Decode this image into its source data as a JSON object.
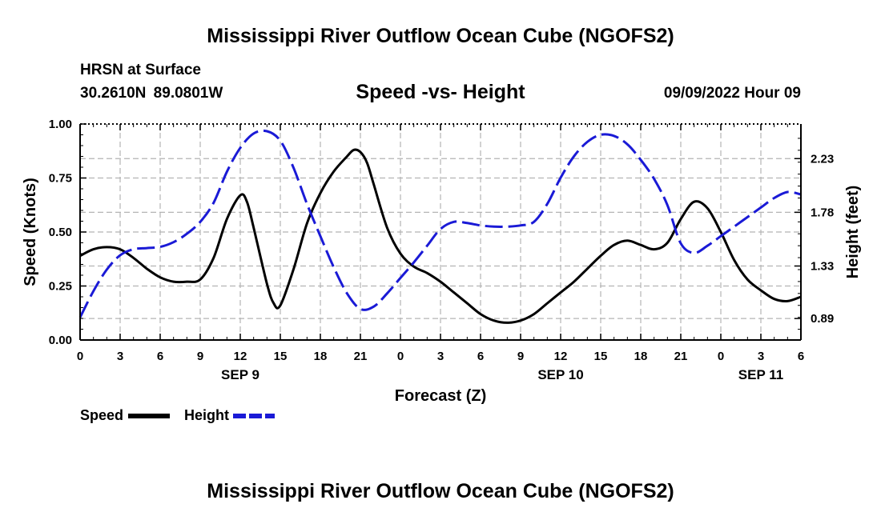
{
  "header": {
    "title": "Mississippi River Outflow Ocean Cube (NGOFS2)",
    "station": "HRSN at Surface",
    "coords": "30.2610N  89.0801W",
    "subtitle": "Speed -vs- Height",
    "datetime": "09/09/2022 Hour 09"
  },
  "footer": {
    "title": "Mississippi River Outflow Ocean Cube (NGOFS2)"
  },
  "chart_data": {
    "type": "line",
    "xlabel": "Forecast (Z)",
    "ylabel": "Speed (Knots)",
    "y2label": "Height (feet)",
    "xlim": [
      0,
      54
    ],
    "ylim": [
      0,
      1.0
    ],
    "y2lim": [
      0.71,
      2.52
    ],
    "x_tick_values": [
      0,
      3,
      6,
      9,
      12,
      15,
      18,
      21,
      24,
      27,
      30,
      33,
      36,
      39,
      42,
      45,
      48,
      51,
      54
    ],
    "x_tick_labels": [
      "0",
      "3",
      "6",
      "9",
      "12",
      "15",
      "18",
      "21",
      "0",
      "3",
      "6",
      "9",
      "12",
      "15",
      "18",
      "21",
      "0",
      "3",
      "6"
    ],
    "date_labels": [
      {
        "label": "SEP 9",
        "x": 12
      },
      {
        "label": "SEP 10",
        "x": 36
      },
      {
        "label": "SEP 11",
        "x": 51
      }
    ],
    "y_ticks": [
      0.0,
      0.25,
      0.5,
      0.75,
      1.0
    ],
    "y_tick_labels": [
      "0.00",
      "0.25",
      "0.50",
      "0.75",
      "1.00"
    ],
    "y2_ticks": [
      0.89,
      1.33,
      1.78,
      2.23
    ],
    "y2_tick_labels": [
      "0.89",
      "1.33",
      "1.78",
      "2.23"
    ],
    "grid": true,
    "legend": {
      "position": "bottom-left",
      "speed_label": "Speed",
      "height_label": "Height"
    },
    "series": [
      {
        "name": "Speed",
        "axis": "left",
        "color": "#000000",
        "style": "solid",
        "x": [
          0,
          1,
          2,
          3,
          4,
          5,
          6,
          7,
          8,
          9,
          10,
          11,
          12,
          12.5,
          13,
          14,
          14.5,
          15,
          16,
          17,
          18,
          19,
          20,
          20.5,
          21,
          21.5,
          22,
          23,
          24,
          25,
          26,
          27,
          28,
          29,
          30,
          31,
          32,
          33,
          34,
          35,
          36,
          37,
          38,
          39,
          40,
          41,
          42,
          43,
          44,
          45,
          46,
          47,
          48,
          49,
          50,
          51,
          52,
          53,
          54
        ],
        "values": [
          0.39,
          0.42,
          0.43,
          0.42,
          0.38,
          0.33,
          0.29,
          0.27,
          0.27,
          0.28,
          0.38,
          0.56,
          0.67,
          0.64,
          0.52,
          0.26,
          0.17,
          0.16,
          0.33,
          0.54,
          0.68,
          0.78,
          0.85,
          0.88,
          0.87,
          0.82,
          0.72,
          0.52,
          0.4,
          0.34,
          0.31,
          0.27,
          0.22,
          0.17,
          0.12,
          0.09,
          0.08,
          0.09,
          0.12,
          0.17,
          0.22,
          0.27,
          0.33,
          0.39,
          0.44,
          0.46,
          0.44,
          0.42,
          0.45,
          0.56,
          0.64,
          0.61,
          0.5,
          0.37,
          0.28,
          0.23,
          0.19,
          0.18,
          0.2
        ]
      },
      {
        "name": "Height",
        "axis": "right",
        "color": "#1a1ad6",
        "style": "dashed",
        "x": [
          0,
          1,
          2,
          3,
          4,
          5,
          6,
          7,
          8,
          9,
          10,
          11,
          12,
          13,
          14,
          15,
          16,
          17,
          18,
          19,
          20,
          21,
          22,
          23,
          24,
          25,
          26,
          27,
          28,
          29,
          30,
          31,
          32,
          33,
          34,
          35,
          36,
          37,
          38,
          39,
          40,
          41,
          42,
          43,
          44,
          45,
          46,
          47,
          48,
          49,
          50,
          51,
          52,
          53,
          54
        ],
        "values": [
          0.9,
          1.12,
          1.3,
          1.42,
          1.47,
          1.48,
          1.49,
          1.53,
          1.6,
          1.7,
          1.86,
          2.12,
          2.32,
          2.44,
          2.46,
          2.38,
          2.15,
          1.85,
          1.58,
          1.32,
          1.1,
          0.97,
          0.99,
          1.1,
          1.23,
          1.36,
          1.5,
          1.64,
          1.7,
          1.69,
          1.67,
          1.66,
          1.66,
          1.67,
          1.7,
          1.85,
          2.07,
          2.25,
          2.37,
          2.43,
          2.42,
          2.35,
          2.22,
          2.06,
          1.84,
          1.52,
          1.44,
          1.5,
          1.58,
          1.66,
          1.74,
          1.82,
          1.9,
          1.95,
          1.93
        ]
      }
    ]
  }
}
